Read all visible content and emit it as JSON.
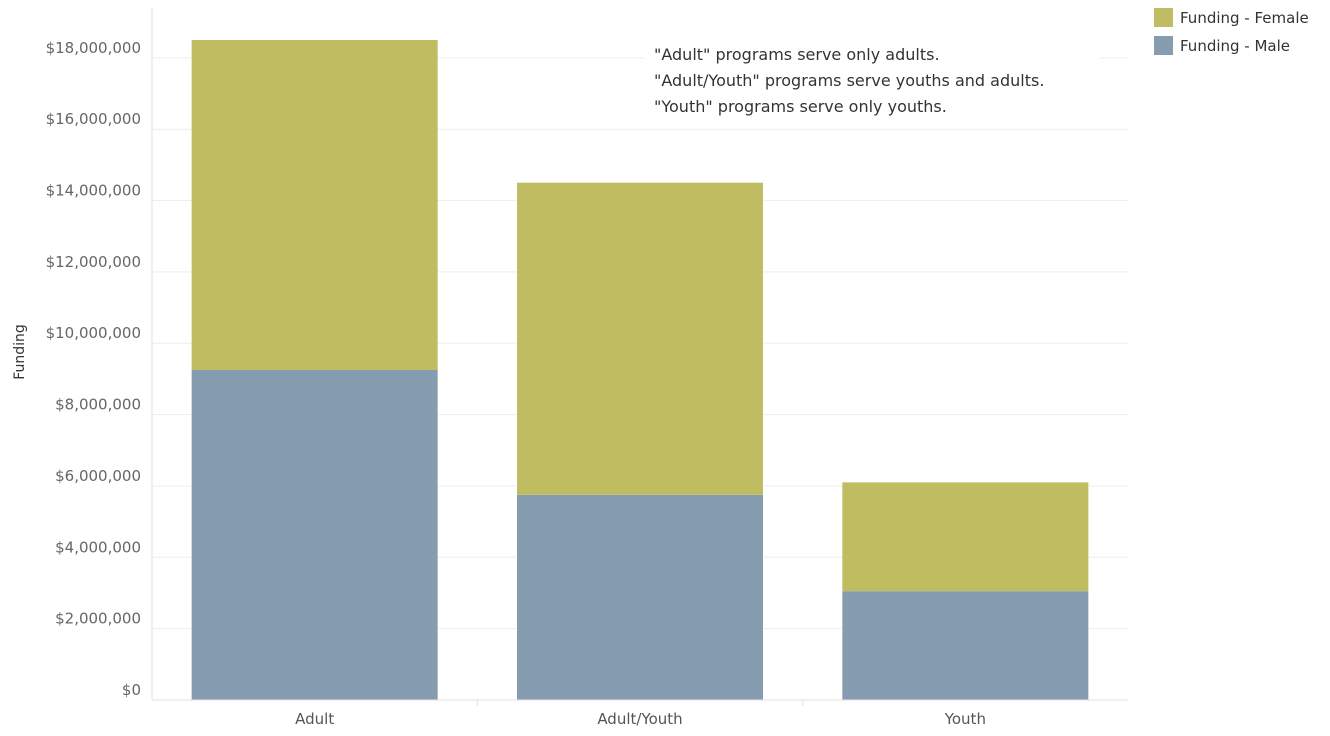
{
  "chart_data": {
    "type": "bar",
    "stacked": true,
    "categories": [
      "Adult",
      "Adult/Youth",
      "Youth"
    ],
    "series": [
      {
        "name": "Funding - Male",
        "values": [
          9250000,
          5750000,
          3050000
        ],
        "color": "#869cb0"
      },
      {
        "name": "Funding - Female",
        "values": [
          9250000,
          8750000,
          3050000
        ],
        "color": "#c0bc61"
      }
    ],
    "ylabel": "Funding",
    "xlabel": "",
    "ylim": [
      0,
      18500000
    ],
    "yticks": [
      0,
      2000000,
      4000000,
      6000000,
      8000000,
      10000000,
      12000000,
      14000000,
      16000000,
      18000000
    ],
    "ytick_labels": [
      "$0",
      "$2,000,000",
      "$4,000,000",
      "$6,000,000",
      "$8,000,000",
      "$10,000,000",
      "$12,000,000",
      "$14,000,000",
      "$16,000,000",
      "$18,000,000"
    ],
    "grid": true,
    "legend": {
      "placement": "top-right",
      "entries": [
        "Funding - Female",
        "Funding - Male"
      ]
    },
    "annotation": [
      "\"Adult\" programs serve only adults.",
      "\"Adult/Youth\" programs serve youths and adults.",
      "\"Youth\" programs serve only youths."
    ]
  }
}
